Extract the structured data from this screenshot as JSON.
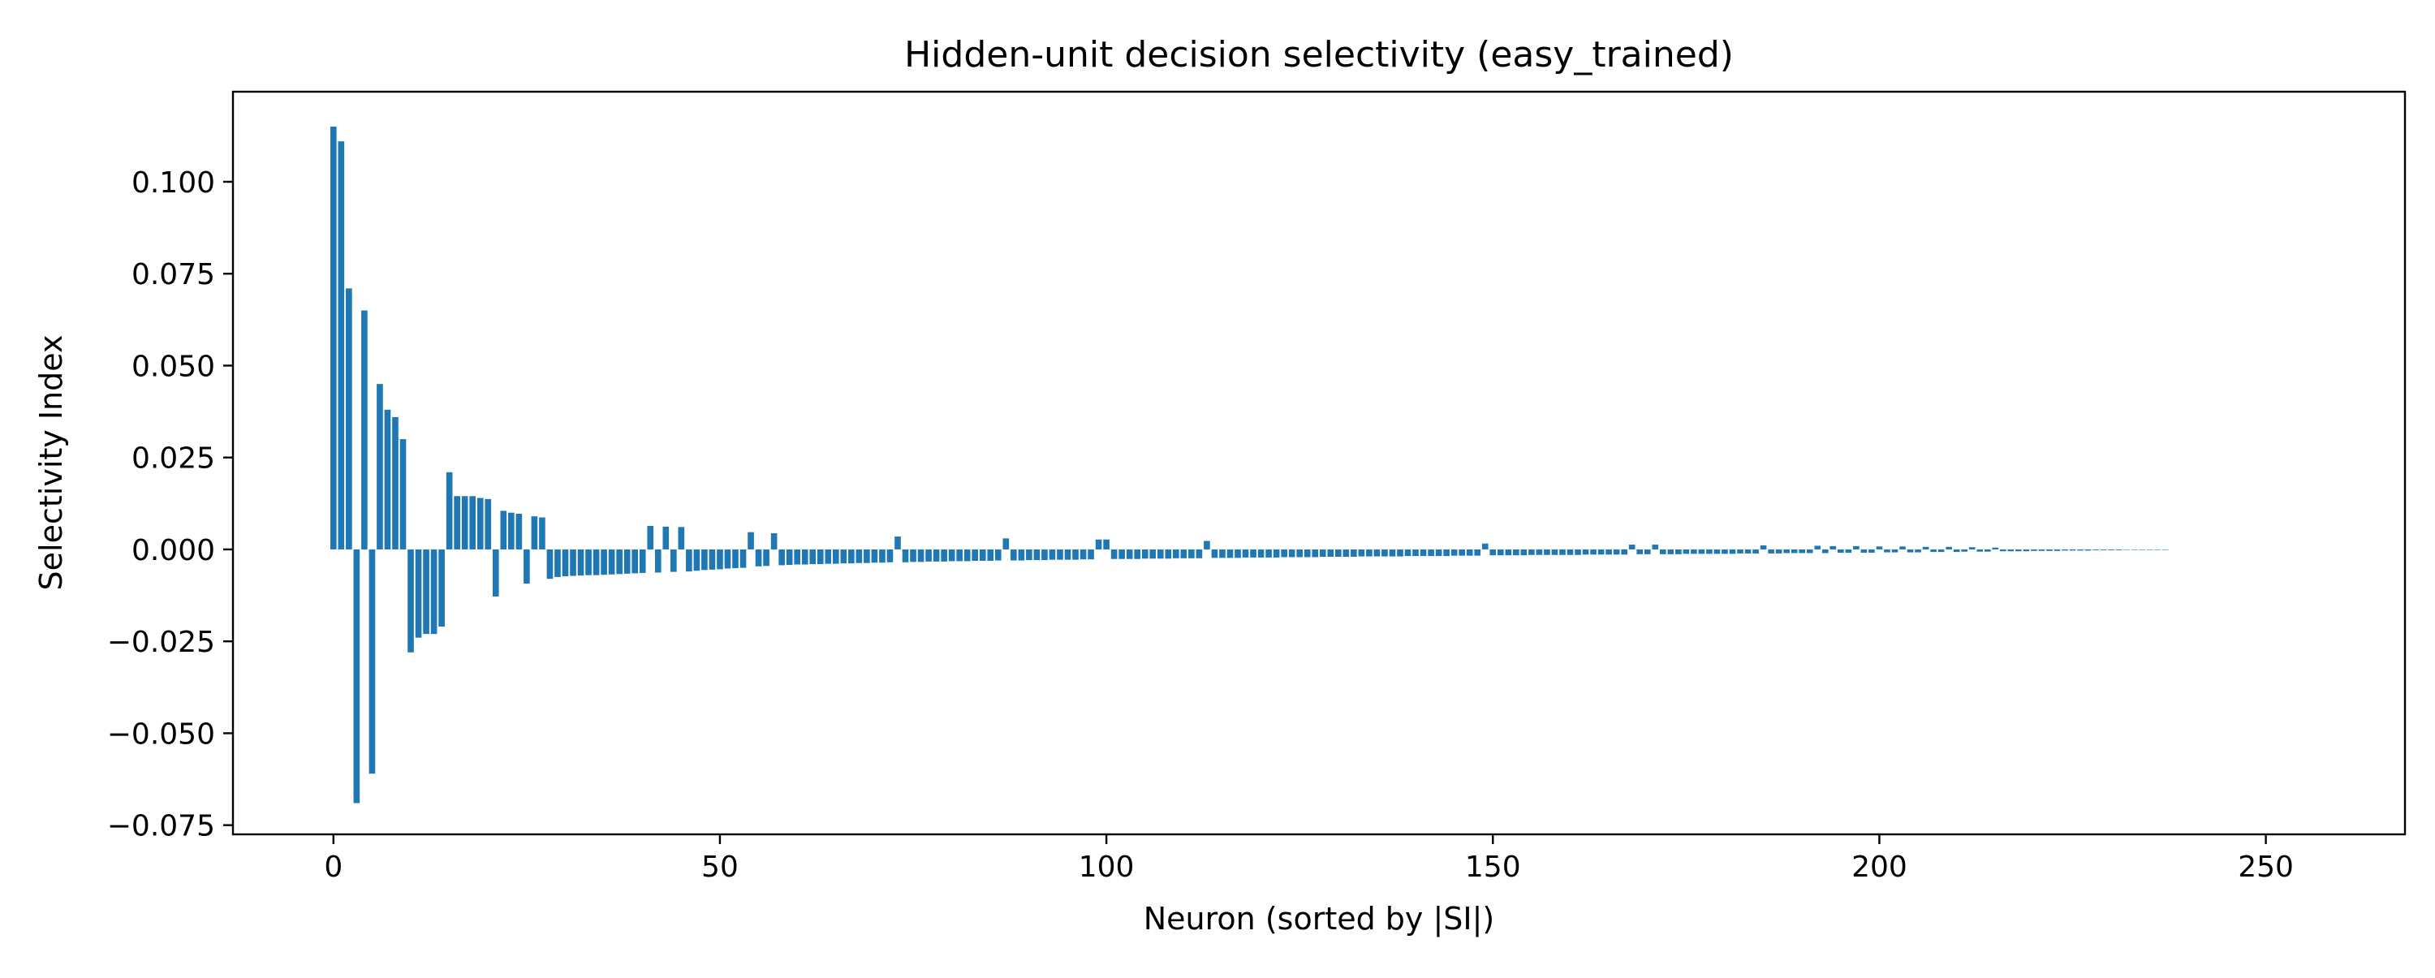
{
  "chart_data": {
    "type": "bar",
    "title": "Hidden-unit decision selectivity (easy_trained)",
    "xlabel": "Neuron (sorted by |SI|)",
    "ylabel": "Selectivity Index",
    "xlim": [
      -13,
      268
    ],
    "ylim": [
      -0.0775,
      0.1245
    ],
    "xticks": [
      0,
      50,
      100,
      150,
      200,
      250
    ],
    "yticks": [
      -0.075,
      -0.05,
      -0.025,
      0.0,
      0.025,
      0.05,
      0.075,
      0.1
    ],
    "xtick_labels": [
      "0",
      "50",
      "100",
      "150",
      "200",
      "250"
    ],
    "ytick_labels": [
      "−0.075",
      "−0.050",
      "−0.025",
      "0.000",
      "0.025",
      "0.050",
      "0.075",
      "0.100"
    ],
    "grid": false,
    "bar_color": "#1f77b4",
    "series": [
      {
        "values": [
          0.115,
          0.111,
          0.071,
          -0.069,
          0.065,
          -0.061,
          0.045,
          0.038,
          0.036,
          0.03,
          -0.028,
          -0.024,
          -0.023,
          -0.023,
          -0.021,
          0.021,
          0.0145,
          0.0145,
          0.0145,
          0.014,
          0.0137,
          -0.0128,
          0.0105,
          0.01,
          0.0097,
          -0.0093,
          0.009,
          0.0087,
          -0.008,
          -0.0075,
          -0.0073,
          -0.0072,
          -0.0071,
          -0.007,
          -0.007,
          -0.0069,
          -0.0068,
          -0.0067,
          -0.0066,
          -0.0065,
          -0.0064,
          0.0064,
          -0.0063,
          0.0062,
          -0.0061,
          0.0061,
          -0.006,
          -0.0058,
          -0.0056,
          -0.0055,
          -0.0054,
          -0.0052,
          -0.0051,
          -0.005,
          0.0047,
          -0.0046,
          -0.0045,
          0.0044,
          -0.0043,
          -0.0042,
          -0.0041,
          -0.0041,
          -0.004,
          -0.004,
          -0.0039,
          -0.0039,
          -0.0038,
          -0.0038,
          -0.0037,
          -0.0037,
          -0.0036,
          -0.0036,
          -0.0035,
          0.0035,
          -0.0035,
          -0.0034,
          -0.0034,
          -0.0033,
          -0.0033,
          -0.0033,
          -0.0032,
          -0.0032,
          -0.0032,
          -0.0031,
          -0.0031,
          -0.0031,
          -0.003,
          0.003,
          -0.003,
          -0.003,
          -0.0029,
          -0.0029,
          -0.0029,
          -0.0028,
          -0.0028,
          -0.0028,
          -0.0028,
          -0.0027,
          -0.0027,
          0.0027,
          0.0027,
          -0.0026,
          -0.0026,
          -0.0026,
          -0.0026,
          -0.0025,
          -0.0025,
          -0.0025,
          -0.0025,
          -0.0024,
          -0.0024,
          -0.0024,
          -0.0024,
          0.0023,
          -0.0023,
          -0.0023,
          -0.0023,
          -0.0023,
          -0.0022,
          -0.0022,
          -0.0022,
          -0.0022,
          -0.0022,
          -0.0021,
          -0.0021,
          -0.0021,
          -0.0021,
          -0.0021,
          -0.002,
          -0.002,
          -0.002,
          -0.002,
          -0.002,
          -0.0019,
          -0.0019,
          -0.0019,
          -0.0019,
          -0.0019,
          -0.0019,
          -0.0018,
          -0.0018,
          -0.0018,
          -0.0018,
          -0.0018,
          -0.0018,
          -0.0017,
          -0.0017,
          -0.0017,
          -0.0017,
          0.0016,
          -0.0016,
          -0.0016,
          -0.0016,
          -0.0016,
          -0.0016,
          -0.0015,
          -0.0015,
          -0.0015,
          -0.0015,
          -0.0015,
          -0.0015,
          -0.0015,
          -0.0014,
          -0.0014,
          -0.0014,
          -0.0014,
          -0.0014,
          -0.0014,
          0.0013,
          -0.0013,
          -0.0013,
          0.0013,
          -0.0013,
          -0.0013,
          -0.0013,
          -0.0012,
          -0.0012,
          -0.0012,
          -0.0012,
          -0.0012,
          -0.0012,
          -0.0012,
          -0.0011,
          -0.0011,
          -0.0011,
          0.0011,
          -0.0011,
          -0.0011,
          -0.001,
          -0.001,
          -0.001,
          -0.001,
          0.001,
          -0.001,
          0.0009,
          -0.0009,
          -0.0009,
          0.0009,
          -0.0009,
          -0.0009,
          0.0008,
          -0.0008,
          -0.0008,
          0.0008,
          -0.0008,
          -0.0008,
          0.0007,
          -0.0007,
          -0.0007,
          0.0007,
          -0.0007,
          -0.0006,
          0.0006,
          -0.0006,
          -0.0006,
          0.0005,
          -0.0005,
          -0.0005,
          -0.0005,
          -0.0005,
          -0.0004,
          -0.0004,
          -0.0004,
          -0.0004,
          -0.0003,
          -0.0003,
          -0.0003,
          -0.0003,
          -0.0002,
          -0.0002,
          -0.0002,
          -0.0002,
          -0.0001,
          -0.0001,
          -0.0001,
          -0.0001,
          -0.0001,
          -0.0001
        ]
      }
    ]
  }
}
